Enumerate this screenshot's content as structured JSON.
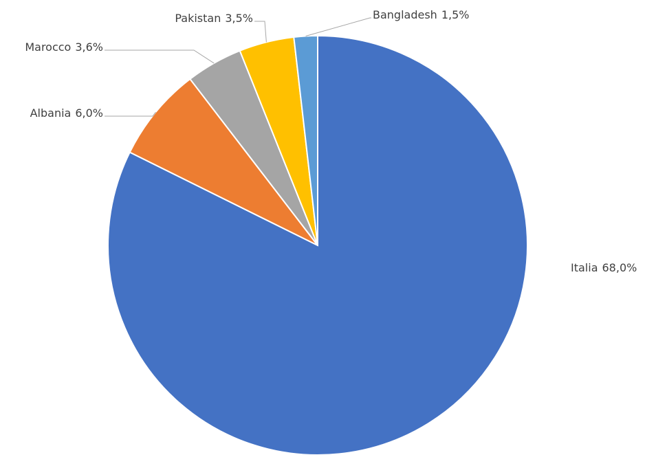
{
  "chart_data": {
    "type": "pie",
    "categories": [
      "Italia",
      "Albania",
      "Marocco",
      "Pakistan",
      "Bangladesh"
    ],
    "values": [
      68.0,
      6.0,
      3.6,
      3.5,
      1.5
    ],
    "value_labels": [
      "68,0%",
      "6,0%",
      "3,6%",
      "3,5%",
      "1,5%"
    ],
    "colors": [
      "#4472c4",
      "#ed7d31",
      "#a5a5a5",
      "#ffc000",
      "#5b9bd5"
    ]
  }
}
